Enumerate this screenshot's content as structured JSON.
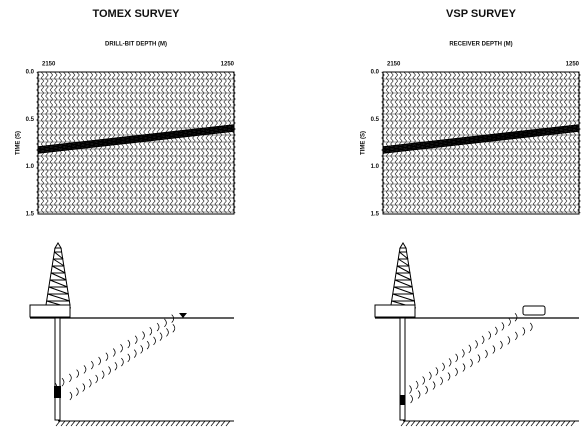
{
  "panels": [
    {
      "title": "TOMEX SURVEY",
      "axis_label": "DRILL-BIT DEPTH (M)",
      "x_left": "2150",
      "x_right": "1250",
      "y_label": "TIME (S)",
      "y_ticks": [
        "0.0",
        "0.5",
        "1.0",
        "1.5"
      ]
    },
    {
      "title": "VSP SURVEY",
      "axis_label": "RECEIVER DEPTH (M)",
      "x_left": "2150",
      "x_right": "1250",
      "y_label": "TIME (S)",
      "y_ticks": [
        "0.0",
        "0.5",
        "1.0",
        "1.5"
      ]
    }
  ]
}
